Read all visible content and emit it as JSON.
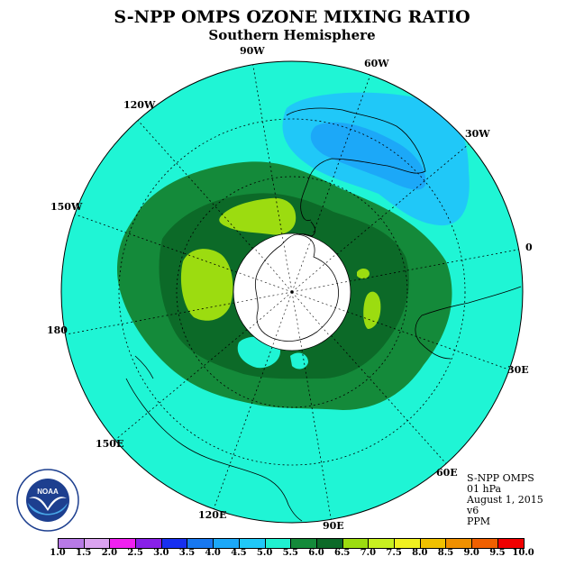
{
  "header": {
    "title": "S-NPP OMPS OZONE MIXING RATIO",
    "subtitle": "Southern Hemisphere"
  },
  "map": {
    "projection": "south polar stereographic",
    "ocean_color": "#1ff5d5",
    "longitude_labels": [
      "90W",
      "60W",
      "30W",
      "0",
      "30E",
      "60E",
      "90E",
      "120E",
      "150E",
      "180",
      "150W",
      "120W"
    ]
  },
  "info": {
    "instrument": "S-NPP OMPS",
    "level": "01 hPa",
    "date": "August 1, 2015",
    "version": "v6",
    "units": "PPM"
  },
  "logo": {
    "text": "NOAA",
    "ring_text": "NATIONAL OCEANIC AND ATMOSPHERIC ADMINISTRATION · U.S. DEPARTMENT OF COMMERCE"
  },
  "colorbar": {
    "tick_labels": [
      "1.0",
      "1.5",
      "2.0",
      "2.5",
      "3.0",
      "3.5",
      "4.0",
      "4.5",
      "5.0",
      "5.5",
      "6.0",
      "6.5",
      "7.0",
      "7.5",
      "8.0",
      "8.5",
      "9.0",
      "9.5",
      "10.0"
    ],
    "colors": [
      "#b87ae6",
      "#dba3f0",
      "#f020f0",
      "#8820e8",
      "#1830f0",
      "#1878f0",
      "#1ca8f8",
      "#20c8f8",
      "#20f0d0",
      "#148a3a",
      "#0c6a28",
      "#9cdc10",
      "#c8f020",
      "#f0f020",
      "#f0c000",
      "#f09000",
      "#f06000",
      "#f00000",
      "#8a5a40"
    ]
  }
}
